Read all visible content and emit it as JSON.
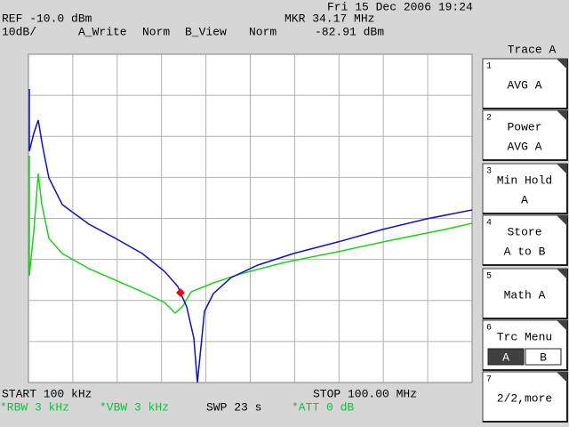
{
  "header": {
    "datetime": "Fri 15 Dec 2006 19:24",
    "ref": "REF -10.0 dBm",
    "marker_freq": "MKR 34.17 MHz",
    "scale": "10dB/",
    "trace_a_mode": "A_Write",
    "trace_a_detector": "Norm",
    "trace_b_mode": "B_View",
    "trace_b_detector": "Norm",
    "marker_level": "-82.91 dBm"
  },
  "footer": {
    "start": "START 100 kHz",
    "stop": "STOP 100.00 MHz",
    "rbw": "*RBW 3 kHz",
    "vbw": "*VBW 3 kHz",
    "sweep": "SWP 23 s",
    "att": "*ATT 0 dB"
  },
  "menu": {
    "title": "Trace A",
    "keys": [
      {
        "number": "1",
        "lines": [
          "AVG A"
        ]
      },
      {
        "number": "2",
        "lines": [
          "Power",
          "AVG A"
        ]
      },
      {
        "number": "3",
        "lines": [
          "Min Hold",
          "A"
        ]
      },
      {
        "number": "4",
        "lines": [
          "Store",
          "A to B"
        ]
      },
      {
        "number": "5",
        "lines": [
          "Math A"
        ]
      },
      {
        "number": "6",
        "lines": [
          "Trc Menu"
        ],
        "toggle": [
          "A",
          "B"
        ]
      },
      {
        "number": "7",
        "lines": [
          "2/2,more"
        ]
      }
    ]
  }
}
